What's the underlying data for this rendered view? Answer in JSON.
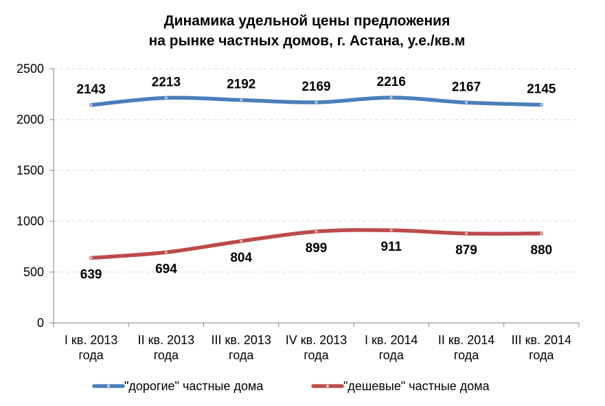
{
  "chart_data": {
    "type": "line",
    "title_lines": [
      "Динамика удельной цены предложения",
      "на рынке частных домов, г. Астана, у.е./кв.м"
    ],
    "categories": [
      [
        "I кв. 2013",
        "года"
      ],
      [
        "II кв. 2013",
        "года"
      ],
      [
        "III кв. 2013",
        "года"
      ],
      [
        "IV кв. 2013",
        "года"
      ],
      [
        "I кв. 2014",
        "года"
      ],
      [
        "II кв. 2014",
        "года"
      ],
      [
        "III кв. 2014",
        "года"
      ]
    ],
    "ylim": [
      0,
      2500
    ],
    "yticks": [
      "0",
      "500",
      "1000",
      "1500",
      "2000",
      "2500"
    ],
    "grid": true,
    "legend_position": "bottom",
    "series": [
      {
        "name": "\"дорогие\" частные дома",
        "color": "#4a7ebb",
        "values": [
          2143,
          2213,
          2192,
          2169,
          2216,
          2167,
          2145
        ],
        "labels": [
          "2143",
          "2213",
          "2192",
          "2169",
          "2216",
          "2167",
          "2145"
        ]
      },
      {
        "name": "\"дешевые\" частные дома",
        "color": "#be4b48",
        "values": [
          639,
          694,
          804,
          899,
          911,
          879,
          880
        ],
        "labels": [
          "639",
          "694",
          "804",
          "899",
          "911",
          "879",
          "880"
        ]
      }
    ]
  }
}
